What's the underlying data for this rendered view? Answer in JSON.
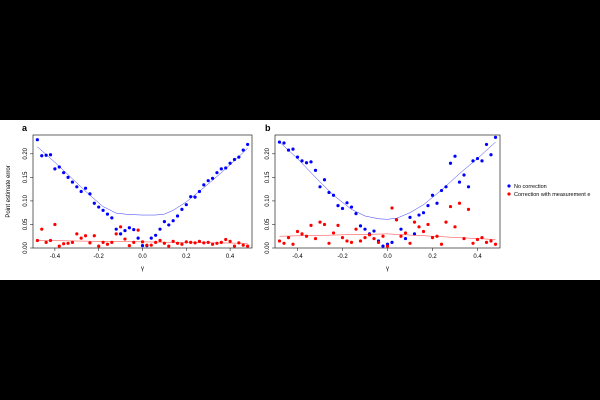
{
  "chart_data": [
    {
      "type": "scatter",
      "panel_label": "a",
      "xlabel": "γ",
      "ylabel": "Point estimate error",
      "xlim": [
        -0.5,
        0.5
      ],
      "ylim": [
        0.0,
        0.24
      ],
      "xticks": [
        "-0.4",
        "-0.2",
        "0.0",
        "0.2",
        "0.4"
      ],
      "xtick_values": [
        -0.4,
        -0.2,
        0.0,
        0.2,
        0.4
      ],
      "yticks": [
        "0.00",
        "0.05",
        "0.10",
        "0.15",
        "0.20"
      ],
      "ytick_values": [
        0.0,
        0.05,
        0.1,
        0.15,
        0.2
      ],
      "series": [
        {
          "name": "No correction",
          "color": "#0000ff",
          "points": [
            [
              -0.48,
              0.23
            ],
            [
              -0.46,
              0.196
            ],
            [
              -0.44,
              0.197
            ],
            [
              -0.42,
              0.198
            ],
            [
              -0.4,
              0.168
            ],
            [
              -0.38,
              0.172
            ],
            [
              -0.36,
              0.16
            ],
            [
              -0.34,
              0.15
            ],
            [
              -0.32,
              0.14
            ],
            [
              -0.3,
              0.13
            ],
            [
              -0.28,
              0.12
            ],
            [
              -0.26,
              0.127
            ],
            [
              -0.24,
              0.115
            ],
            [
              -0.22,
              0.095
            ],
            [
              -0.2,
              0.087
            ],
            [
              -0.18,
              0.08
            ],
            [
              -0.16,
              0.072
            ],
            [
              -0.14,
              0.064
            ],
            [
              -0.12,
              0.04
            ],
            [
              -0.1,
              0.03
            ],
            [
              -0.08,
              0.037
            ],
            [
              -0.06,
              0.043
            ],
            [
              -0.04,
              0.039
            ],
            [
              -0.02,
              0.021
            ],
            [
              0.0,
              0.005
            ],
            [
              0.02,
              0.005
            ],
            [
              0.04,
              0.021
            ],
            [
              0.06,
              0.027
            ],
            [
              0.08,
              0.04
            ],
            [
              0.1,
              0.056
            ],
            [
              0.12,
              0.049
            ],
            [
              0.14,
              0.058
            ],
            [
              0.16,
              0.068
            ],
            [
              0.18,
              0.082
            ],
            [
              0.2,
              0.092
            ],
            [
              0.22,
              0.109
            ],
            [
              0.24,
              0.108
            ],
            [
              0.26,
              0.12
            ],
            [
              0.28,
              0.134
            ],
            [
              0.3,
              0.143
            ],
            [
              0.32,
              0.148
            ],
            [
              0.34,
              0.16
            ],
            [
              0.36,
              0.168
            ],
            [
              0.38,
              0.17
            ],
            [
              0.4,
              0.18
            ],
            [
              0.42,
              0.188
            ],
            [
              0.44,
              0.193
            ],
            [
              0.46,
              0.208
            ],
            [
              0.48,
              0.22
            ]
          ],
          "fit": [
            [
              -0.48,
              0.215
            ],
            [
              -0.4,
              0.182
            ],
            [
              -0.32,
              0.147
            ],
            [
              -0.24,
              0.112
            ],
            [
              -0.18,
              0.088
            ],
            [
              -0.12,
              0.074
            ],
            [
              -0.06,
              0.071
            ],
            [
              0.0,
              0.07
            ],
            [
              0.06,
              0.07
            ],
            [
              0.1,
              0.072
            ],
            [
              0.14,
              0.08
            ],
            [
              0.2,
              0.098
            ],
            [
              0.28,
              0.128
            ],
            [
              0.36,
              0.16
            ],
            [
              0.44,
              0.194
            ],
            [
              0.48,
              0.212
            ]
          ]
        },
        {
          "name": "Correction with measurement error",
          "color": "#ff0000",
          "points": [
            [
              -0.48,
              0.016
            ],
            [
              -0.46,
              0.04
            ],
            [
              -0.44,
              0.012
            ],
            [
              -0.42,
              0.016
            ],
            [
              -0.4,
              0.05
            ],
            [
              -0.38,
              0.004
            ],
            [
              -0.36,
              0.009
            ],
            [
              -0.34,
              0.01
            ],
            [
              -0.32,
              0.012
            ],
            [
              -0.3,
              0.03
            ],
            [
              -0.28,
              0.021
            ],
            [
              -0.26,
              0.026
            ],
            [
              -0.24,
              0.011
            ],
            [
              -0.22,
              0.026
            ],
            [
              -0.2,
              0.004
            ],
            [
              -0.18,
              0.012
            ],
            [
              -0.16,
              0.008
            ],
            [
              -0.14,
              0.012
            ],
            [
              -0.12,
              0.03
            ],
            [
              -0.1,
              0.045
            ],
            [
              -0.08,
              0.019
            ],
            [
              -0.06,
              0.005
            ],
            [
              -0.04,
              0.012
            ],
            [
              -0.02,
              0.038
            ],
            [
              0.0,
              0.013
            ],
            [
              0.02,
              0.006
            ],
            [
              0.04,
              0.006
            ],
            [
              0.06,
              0.012
            ],
            [
              0.08,
              0.016
            ],
            [
              0.1,
              0.01
            ],
            [
              0.12,
              0.004
            ],
            [
              0.14,
              0.014
            ],
            [
              0.16,
              0.01
            ],
            [
              0.18,
              0.008
            ],
            [
              0.2,
              0.013
            ],
            [
              0.22,
              0.012
            ],
            [
              0.24,
              0.011
            ],
            [
              0.26,
              0.014
            ],
            [
              0.28,
              0.011
            ],
            [
              0.3,
              0.012
            ],
            [
              0.32,
              0.008
            ],
            [
              0.34,
              0.01
            ],
            [
              0.36,
              0.012
            ],
            [
              0.38,
              0.018
            ],
            [
              0.4,
              0.014
            ],
            [
              0.42,
              0.004
            ],
            [
              0.44,
              0.011
            ],
            [
              0.46,
              0.006
            ],
            [
              0.48,
              0.004
            ]
          ],
          "fit": [
            [
              -0.48,
              0.016
            ],
            [
              0.0,
              0.013
            ],
            [
              0.48,
              0.01
            ]
          ]
        }
      ]
    },
    {
      "type": "scatter",
      "panel_label": "b",
      "xlabel": "γ",
      "ylabel": "",
      "xlim": [
        -0.5,
        0.5
      ],
      "ylim": [
        0.0,
        0.24
      ],
      "xticks": [
        "-0.4",
        "-0.2",
        "0.0",
        "0.2",
        "0.4"
      ],
      "xtick_values": [
        -0.4,
        -0.2,
        0.0,
        0.2,
        0.4
      ],
      "yticks": [
        "0.00",
        "0.05",
        "0.10",
        "0.15",
        "0.20"
      ],
      "ytick_values": [
        0.0,
        0.05,
        0.1,
        0.15,
        0.2
      ],
      "series": [
        {
          "name": "No correction",
          "color": "#0000ff",
          "points": [
            [
              -0.48,
              0.225
            ],
            [
              -0.46,
              0.223
            ],
            [
              -0.44,
              0.208
            ],
            [
              -0.42,
              0.21
            ],
            [
              -0.4,
              0.193
            ],
            [
              -0.38,
              0.185
            ],
            [
              -0.36,
              0.181
            ],
            [
              -0.34,
              0.183
            ],
            [
              -0.32,
              0.165
            ],
            [
              -0.3,
              0.13
            ],
            [
              -0.28,
              0.145
            ],
            [
              -0.26,
              0.118
            ],
            [
              -0.24,
              0.112
            ],
            [
              -0.22,
              0.09
            ],
            [
              -0.2,
              0.084
            ],
            [
              -0.18,
              0.096
            ],
            [
              -0.16,
              0.087
            ],
            [
              -0.14,
              0.073
            ],
            [
              -0.12,
              0.047
            ],
            [
              -0.1,
              0.04
            ],
            [
              -0.08,
              0.03
            ],
            [
              -0.06,
              0.036
            ],
            [
              -0.04,
              0.015
            ],
            [
              -0.02,
              0.004
            ],
            [
              0.0,
              0.008
            ],
            [
              0.02,
              0.012
            ],
            [
              0.04,
              0.06
            ],
            [
              0.06,
              0.04
            ],
            [
              0.08,
              0.02
            ],
            [
              0.1,
              0.065
            ],
            [
              0.12,
              0.03
            ],
            [
              0.14,
              0.07
            ],
            [
              0.16,
              0.075
            ],
            [
              0.18,
              0.09
            ],
            [
              0.2,
              0.112
            ],
            [
              0.22,
              0.095
            ],
            [
              0.24,
              0.122
            ],
            [
              0.26,
              0.13
            ],
            [
              0.28,
              0.18
            ],
            [
              0.3,
              0.195
            ],
            [
              0.32,
              0.14
            ],
            [
              0.34,
              0.155
            ],
            [
              0.36,
              0.13
            ],
            [
              0.38,
              0.185
            ],
            [
              0.4,
              0.19
            ],
            [
              0.42,
              0.185
            ],
            [
              0.44,
              0.22
            ],
            [
              0.46,
              0.198
            ],
            [
              0.48,
              0.235
            ]
          ],
          "fit": [
            [
              -0.48,
              0.225
            ],
            [
              -0.4,
              0.19
            ],
            [
              -0.32,
              0.15
            ],
            [
              -0.24,
              0.112
            ],
            [
              -0.16,
              0.082
            ],
            [
              -0.1,
              0.068
            ],
            [
              -0.04,
              0.062
            ],
            [
              0.0,
              0.061
            ],
            [
              0.04,
              0.063
            ],
            [
              0.1,
              0.075
            ],
            [
              0.16,
              0.092
            ],
            [
              0.24,
              0.123
            ],
            [
              0.32,
              0.158
            ],
            [
              0.4,
              0.19
            ],
            [
              0.48,
              0.225
            ]
          ]
        },
        {
          "name": "Correction with measurement error",
          "color": "#ff0000",
          "points": [
            [
              -0.48,
              0.015
            ],
            [
              -0.46,
              0.01
            ],
            [
              -0.44,
              0.022
            ],
            [
              -0.42,
              0.008
            ],
            [
              -0.4,
              0.035
            ],
            [
              -0.38,
              0.03
            ],
            [
              -0.36,
              0.025
            ],
            [
              -0.34,
              0.048
            ],
            [
              -0.32,
              0.02
            ],
            [
              -0.3,
              0.055
            ],
            [
              -0.28,
              0.05
            ],
            [
              -0.26,
              0.01
            ],
            [
              -0.24,
              0.032
            ],
            [
              -0.22,
              0.048
            ],
            [
              -0.2,
              0.022
            ],
            [
              -0.18,
              0.015
            ],
            [
              -0.16,
              0.012
            ],
            [
              -0.14,
              0.04
            ],
            [
              -0.12,
              0.015
            ],
            [
              -0.1,
              0.022
            ],
            [
              -0.08,
              0.028
            ],
            [
              -0.06,
              0.02
            ],
            [
              -0.04,
              0.012
            ],
            [
              -0.02,
              0.025
            ],
            [
              0.0,
              0.004
            ],
            [
              0.02,
              0.085
            ],
            [
              0.04,
              0.06
            ],
            [
              0.06,
              0.025
            ],
            [
              0.08,
              0.032
            ],
            [
              0.1,
              0.01
            ],
            [
              0.12,
              0.055
            ],
            [
              0.14,
              0.045
            ],
            [
              0.16,
              0.035
            ],
            [
              0.18,
              0.05
            ],
            [
              0.2,
              0.022
            ],
            [
              0.22,
              0.025
            ],
            [
              0.24,
              0.008
            ],
            [
              0.26,
              0.055
            ],
            [
              0.28,
              0.088
            ],
            [
              0.3,
              0.045
            ],
            [
              0.32,
              0.095
            ],
            [
              0.34,
              0.02
            ],
            [
              0.36,
              0.082
            ],
            [
              0.38,
              0.01
            ],
            [
              0.4,
              0.018
            ],
            [
              0.42,
              0.022
            ],
            [
              0.44,
              0.012
            ],
            [
              0.46,
              0.015
            ],
            [
              0.48,
              0.008
            ]
          ],
          "fit": [
            [
              -0.48,
              0.025
            ],
            [
              0.0,
              0.03
            ],
            [
              0.48,
              0.018
            ]
          ]
        }
      ]
    }
  ],
  "legend": {
    "placement": "right",
    "entries": [
      {
        "label": "No correction",
        "color": "#0000ff"
      },
      {
        "label": "Correction with measurement e",
        "color": "#ff0000"
      }
    ]
  }
}
